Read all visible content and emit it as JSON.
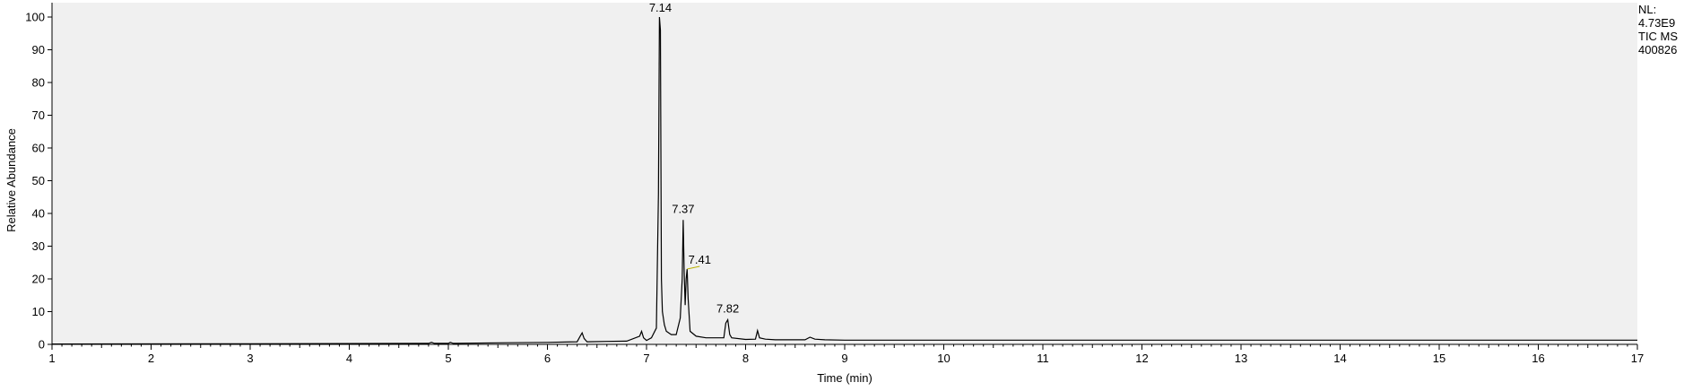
{
  "info": {
    "nl_label": "NL:",
    "nl_value": "4.73E9",
    "trace_type": "TIC  MS",
    "file_name": "400826"
  },
  "chart_data": {
    "type": "line",
    "title": "",
    "xlabel": "Time (min)",
    "ylabel": "Relative Abundance",
    "xlim": [
      1,
      17
    ],
    "ylim": [
      0,
      100
    ],
    "xticks": [
      1,
      2,
      3,
      4,
      5,
      6,
      7,
      8,
      9,
      10,
      11,
      12,
      13,
      14,
      15,
      16,
      17
    ],
    "yticks": [
      0,
      10,
      20,
      30,
      40,
      50,
      60,
      70,
      80,
      90,
      100
    ],
    "grid": false,
    "legend": "none",
    "line_color": "#000000",
    "background_color": "#f0f0f0",
    "series": [
      {
        "x": [
          1.0,
          3.0,
          4.8,
          4.83,
          4.86,
          5.0,
          5.02,
          5.05,
          5.6,
          6.0,
          6.3,
          6.33,
          6.35,
          6.37,
          6.4,
          6.6,
          6.8,
          6.93,
          6.95,
          6.97,
          7.0,
          7.05,
          7.1,
          7.12,
          7.13,
          7.14,
          7.15,
          7.16,
          7.18,
          7.2,
          7.25,
          7.3,
          7.34,
          7.36,
          7.37,
          7.38,
          7.39,
          7.4,
          7.41,
          7.42,
          7.44,
          7.5,
          7.6,
          7.78,
          7.8,
          7.82,
          7.84,
          7.86,
          8.0,
          8.1,
          8.12,
          8.14,
          8.2,
          8.3,
          8.6,
          8.65,
          8.7,
          8.8,
          9.0,
          10.0,
          17.0
        ],
        "y": [
          0.1,
          0.2,
          0.3,
          0.6,
          0.3,
          0.3,
          0.6,
          0.3,
          0.5,
          0.6,
          0.8,
          2.5,
          3.5,
          1.8,
          0.8,
          0.9,
          1.0,
          2.5,
          4.0,
          2.0,
          1.2,
          2.0,
          5.0,
          46,
          100,
          96,
          20,
          10,
          6,
          4,
          3,
          3,
          8,
          20,
          38,
          22,
          12,
          20,
          23,
          14,
          4,
          2.5,
          2,
          2.0,
          6.5,
          7.5,
          3,
          2,
          1.5,
          1.6,
          4.2,
          2.0,
          1.6,
          1.4,
          1.4,
          2.2,
          1.6,
          1.4,
          1.3,
          1.3,
          1.3
        ]
      }
    ],
    "annotations": [
      {
        "x": 7.14,
        "y": 100,
        "text": "7.14"
      },
      {
        "x": 7.37,
        "y": 38,
        "text": "7.37"
      },
      {
        "x": 7.41,
        "y": 23,
        "text": "7.41"
      },
      {
        "x": 7.82,
        "y": 7.5,
        "text": "7.82"
      }
    ]
  }
}
